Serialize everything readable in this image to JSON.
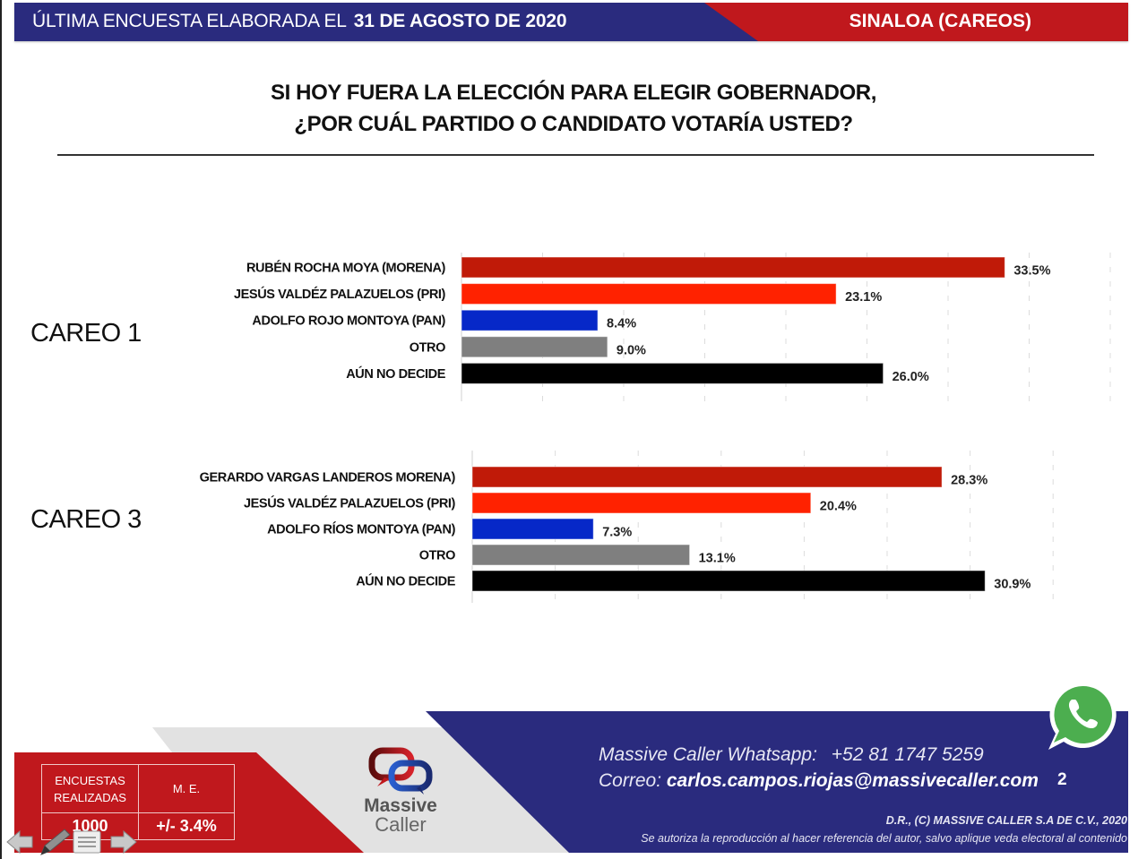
{
  "header": {
    "left_prefix": "ÚLTIMA ENCUESTA ELABORADA EL",
    "left_date": "31 DE AGOSTO DE 2020",
    "right": "SINALOA (CAREOS)"
  },
  "question": {
    "line1": "SI HOY FUERA LA ELECCIÓN PARA ELEGIR GOBERNADOR,",
    "line2": "¿POR CUÁL PARTIDO O CANDIDATO VOTARÍA USTED?"
  },
  "colors": {
    "morena": "#c01a08",
    "pri": "#ff2200",
    "pan": "#0628c8",
    "otro": "#7f7f7f",
    "no_decide": "#000000",
    "brand_blue": "#2a2b7e",
    "brand_red": "#c0181d"
  },
  "chart_data": [
    {
      "type": "bar",
      "orientation": "horizontal",
      "title": "CAREO 1",
      "categories": [
        "RUBÉN ROCHA MOYA (MORENA)",
        "JESÚS VALDÉZ PALAZUELOS (PRI)",
        "ADOLFO ROJO MONTOYA (PAN)",
        "OTRO",
        "AÚN NO DECIDE"
      ],
      "values": [
        33.5,
        23.1,
        8.4,
        9.0,
        26.0
      ],
      "value_labels": [
        "33.5%",
        "23.1%",
        "8.4%",
        "9.0%",
        "26.0%"
      ],
      "bar_colors": [
        "#c01a08",
        "#ff2200",
        "#0628c8",
        "#7f7f7f",
        "#000000"
      ],
      "xlabel": "",
      "ylabel": "",
      "xlim": [
        0,
        40
      ],
      "grid": true,
      "grid_step": 5,
      "legend": "none"
    },
    {
      "type": "bar",
      "orientation": "horizontal",
      "title": "CAREO 3",
      "categories": [
        "GERARDO VARGAS LANDEROS MORENA)",
        "JESÚS VALDÉZ PALAZUELOS  (PRI)",
        "ADOLFO RÍOS MONTOYA (PAN)",
        "OTRO",
        "AÚN NO DECIDE"
      ],
      "values": [
        28.3,
        20.4,
        7.3,
        13.1,
        30.9
      ],
      "value_labels": [
        "28.3%",
        "20.4%",
        "7.3%",
        "13.1%",
        "30.9%"
      ],
      "bar_colors": [
        "#c01a08",
        "#ff2200",
        "#0628c8",
        "#7f7f7f",
        "#000000"
      ],
      "xlabel": "",
      "ylabel": "",
      "xlim": [
        0,
        35
      ],
      "grid": true,
      "grid_step": 5,
      "legend": "none"
    }
  ],
  "footer": {
    "stats": {
      "col1_header": "ENCUESTAS REALIZADAS",
      "col2_header": "M. E.",
      "col1_value": "1000",
      "col2_value": "+/- 3.4%"
    },
    "logo": {
      "line1": "Massive",
      "line2": "Caller"
    },
    "whatsapp_label": "Massive Caller Whatsapp:",
    "whatsapp_number": "+52 81 1747 5259",
    "email_label": "Correo:",
    "email": "carlos.campos.riojas@massivecaller.com",
    "page_number": "2",
    "copyright": "D.R., (C) MASSIVE CALLER S.A DE C.V., 2020",
    "disclaimer": "Se autoriza la reproducción al hacer referencia del autor, salvo aplique veda electoral al contenido"
  },
  "icons": {
    "whatsapp": "whatsapp-icon",
    "nav_prev": "arrow-left-icon",
    "nav_pen": "pen-icon",
    "nav_menu": "menu-icon",
    "nav_next": "arrow-right-icon"
  }
}
